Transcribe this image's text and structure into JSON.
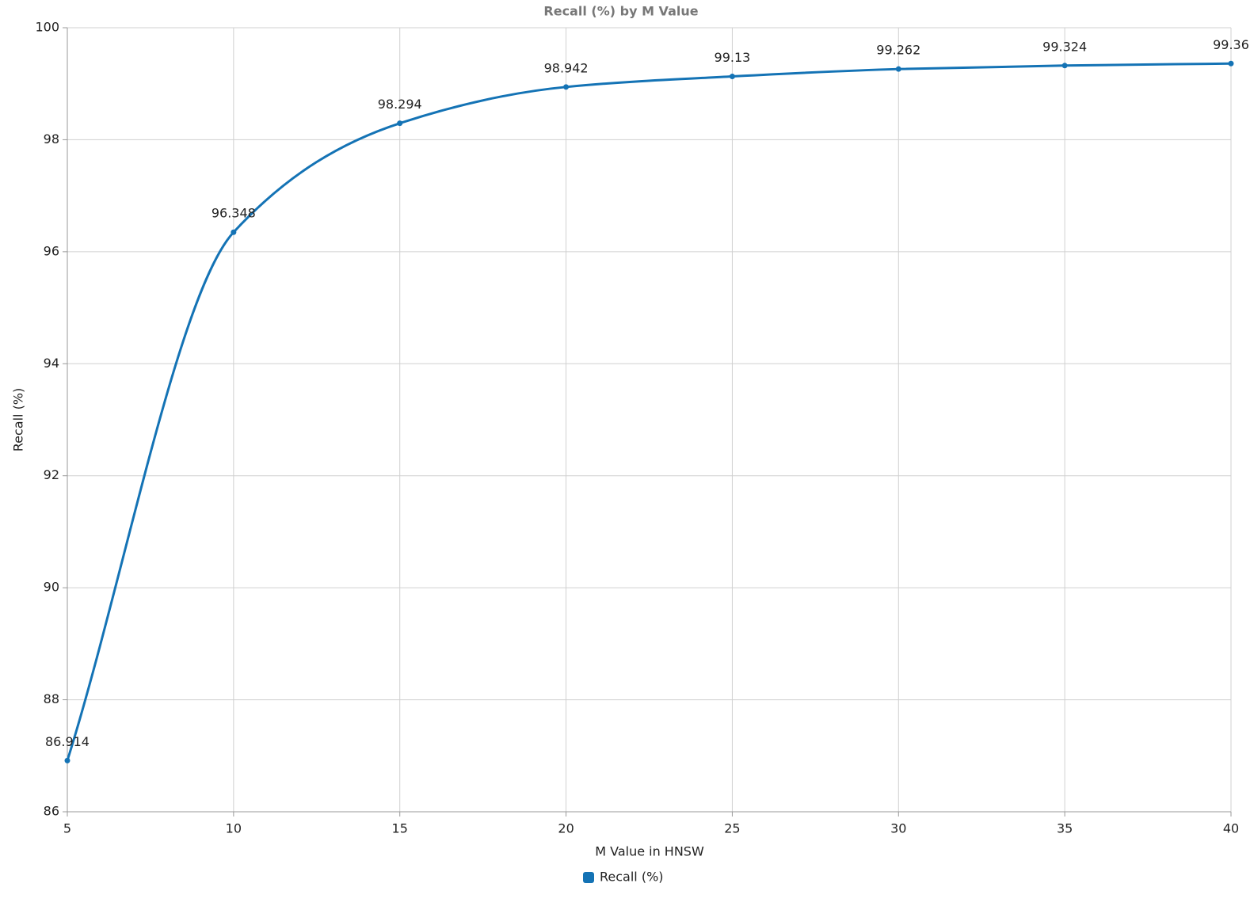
{
  "chart_data": {
    "type": "line",
    "title": "Recall (%) by M Value",
    "x_label": "M Value in HNSW",
    "y_label": "Recall (%)",
    "x": [
      5,
      10,
      15,
      20,
      25,
      30,
      35,
      40
    ],
    "series": [
      {
        "name": "Recall (%)",
        "color": "#1473b5",
        "values": [
          86.914,
          96.348,
          98.294,
          98.942,
          99.13,
          99.262,
          99.324,
          99.36
        ]
      }
    ],
    "xlim": [
      5,
      40
    ],
    "xticks": [
      5,
      10,
      15,
      20,
      25,
      30,
      35,
      40
    ],
    "ylim": [
      86,
      100
    ],
    "yticks": [
      86,
      88,
      90,
      92,
      94,
      96,
      98,
      100
    ],
    "grid": true,
    "legend": "bottom"
  }
}
